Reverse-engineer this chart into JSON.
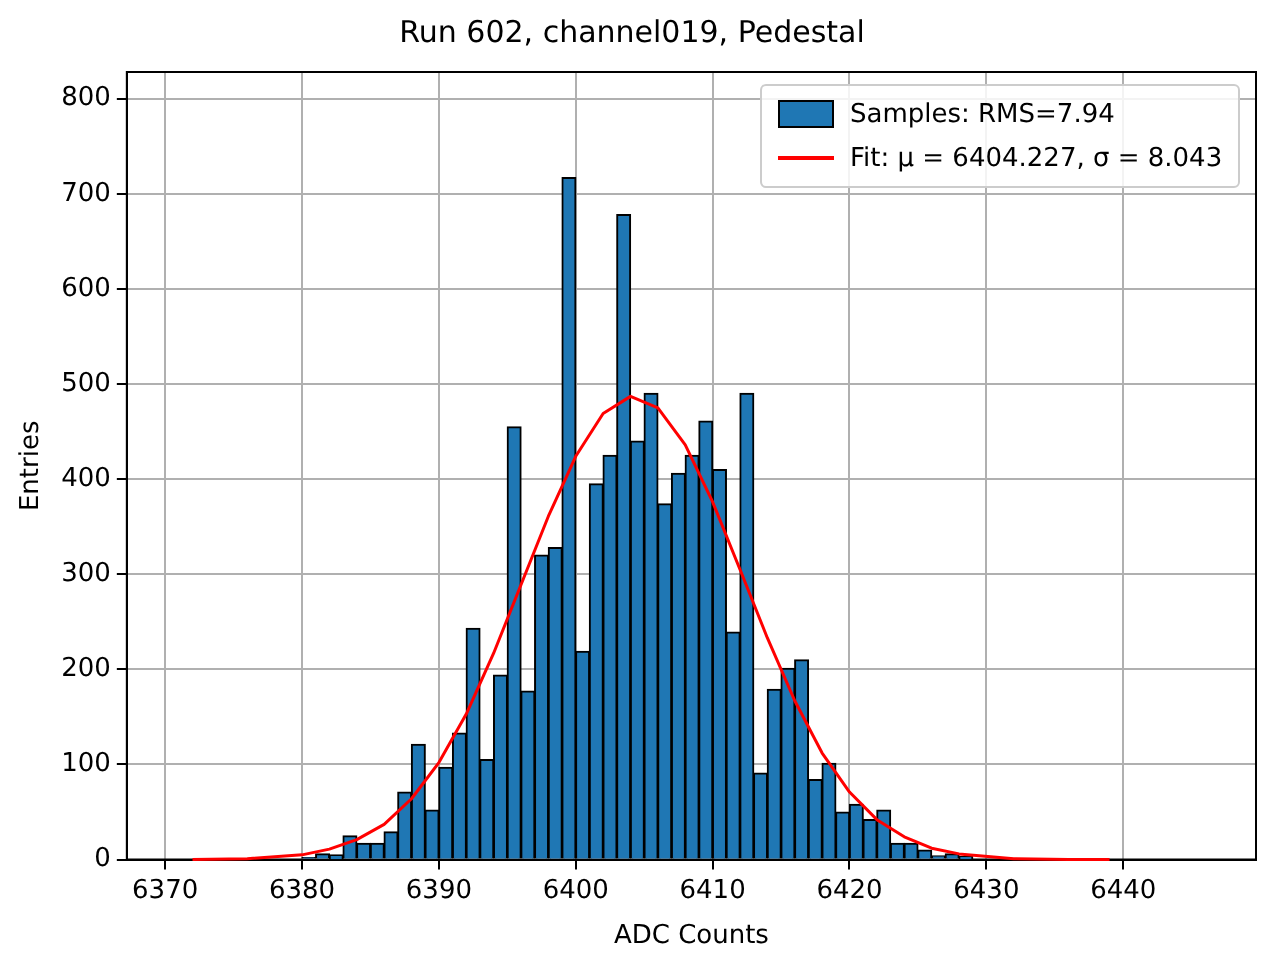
{
  "chart_data": {
    "type": "histogram",
    "title": "Run 602, channel019, Pedestal",
    "xlabel": "ADC Counts",
    "ylabel": "Entries",
    "xlim": [
      6367.2,
      6449.7
    ],
    "xticks": [
      6370,
      6380,
      6390,
      6400,
      6410,
      6420,
      6430,
      6440
    ],
    "ylim": [
      0,
      828
    ],
    "yticks": [
      0,
      100,
      200,
      300,
      400,
      500,
      600,
      700,
      800
    ],
    "grid": true,
    "legend": "top right",
    "series": [
      {
        "name": "Samples: RMS=7.94",
        "color": "#1f77b4",
        "bins": [
          6380,
          6381,
          6382,
          6383,
          6384,
          6385,
          6386,
          6387,
          6388,
          6389,
          6390,
          6391,
          6392,
          6393,
          6394,
          6395,
          6396,
          6397,
          6398,
          6399,
          6400,
          6401,
          6402,
          6403,
          6404,
          6405,
          6406,
          6407,
          6408,
          6409,
          6410,
          6411,
          6412,
          6413,
          6414,
          6415,
          6416,
          6417,
          6418,
          6419,
          6420,
          6421,
          6422,
          6423,
          6424,
          6425,
          6426,
          6427,
          6428,
          6429
        ],
        "values": [
          2,
          6,
          5,
          25,
          17,
          17,
          29,
          71,
          121,
          52,
          97,
          133,
          243,
          105,
          194,
          455,
          177,
          320,
          328,
          717,
          219,
          395,
          425,
          678,
          440,
          490,
          374,
          406,
          425,
          461,
          410,
          239,
          490,
          91,
          179,
          201,
          210,
          84,
          101,
          50,
          58,
          42,
          52,
          17,
          17,
          10,
          4,
          6,
          3
        ]
      },
      {
        "type": "line",
        "name": "Fit: μ = 6404.227, σ = 8.043",
        "color": "#ff0000",
        "x": [
          6372,
          6376,
          6380,
          6382,
          6384,
          6386,
          6388,
          6390,
          6392,
          6394,
          6396,
          6398,
          6400,
          6402,
          6404,
          6406,
          6408,
          6410,
          6412,
          6414,
          6416,
          6418,
          6420,
          6422,
          6424,
          6426,
          6428,
          6432,
          6436,
          6439
        ],
        "values": [
          0,
          1,
          5,
          11,
          21,
          37,
          64,
          102,
          153,
          217,
          289,
          361,
          424,
          469,
          487,
          475,
          436,
          376,
          305,
          233,
          167,
          112,
          71,
          42,
          24,
          12,
          6,
          1,
          0,
          0
        ]
      }
    ]
  }
}
